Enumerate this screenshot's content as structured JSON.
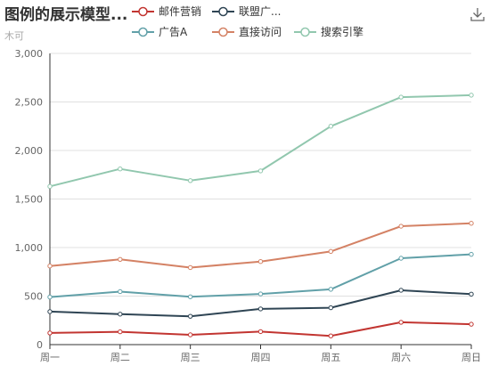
{
  "title": "图例的展示模型...",
  "subtitle": "木可",
  "toolbox": {
    "icon": "download-icon"
  },
  "chart_data": {
    "type": "line",
    "categories": [
      "周一",
      "周二",
      "周三",
      "周四",
      "周五",
      "周六",
      "周日"
    ],
    "ylim": [
      0,
      3000
    ],
    "yticks": [
      "0",
      "500",
      "1,000",
      "1,500",
      "2,000",
      "2,500",
      "3,000"
    ],
    "grid": true,
    "legend_position": "top",
    "series": [
      {
        "name": "邮件营销",
        "color": "#c23531",
        "values": [
          120,
          132,
          101,
          134,
          90,
          230,
          210
        ]
      },
      {
        "name": "联盟广...",
        "color": "#2f4554",
        "values": [
          340,
          314,
          292,
          368,
          380,
          560,
          520
        ]
      },
      {
        "name": "广告A",
        "color": "#61a0a8",
        "values": [
          490,
          546,
          493,
          522,
          570,
          890,
          930
        ]
      },
      {
        "name": "直接访问",
        "color": "#d48265",
        "values": [
          810,
          878,
          794,
          856,
          960,
          1220,
          1250
        ]
      },
      {
        "name": "搜索引擎",
        "color": "#91c7ae",
        "values": [
          1630,
          1810,
          1690,
          1790,
          2250,
          2550,
          2570
        ]
      }
    ]
  }
}
